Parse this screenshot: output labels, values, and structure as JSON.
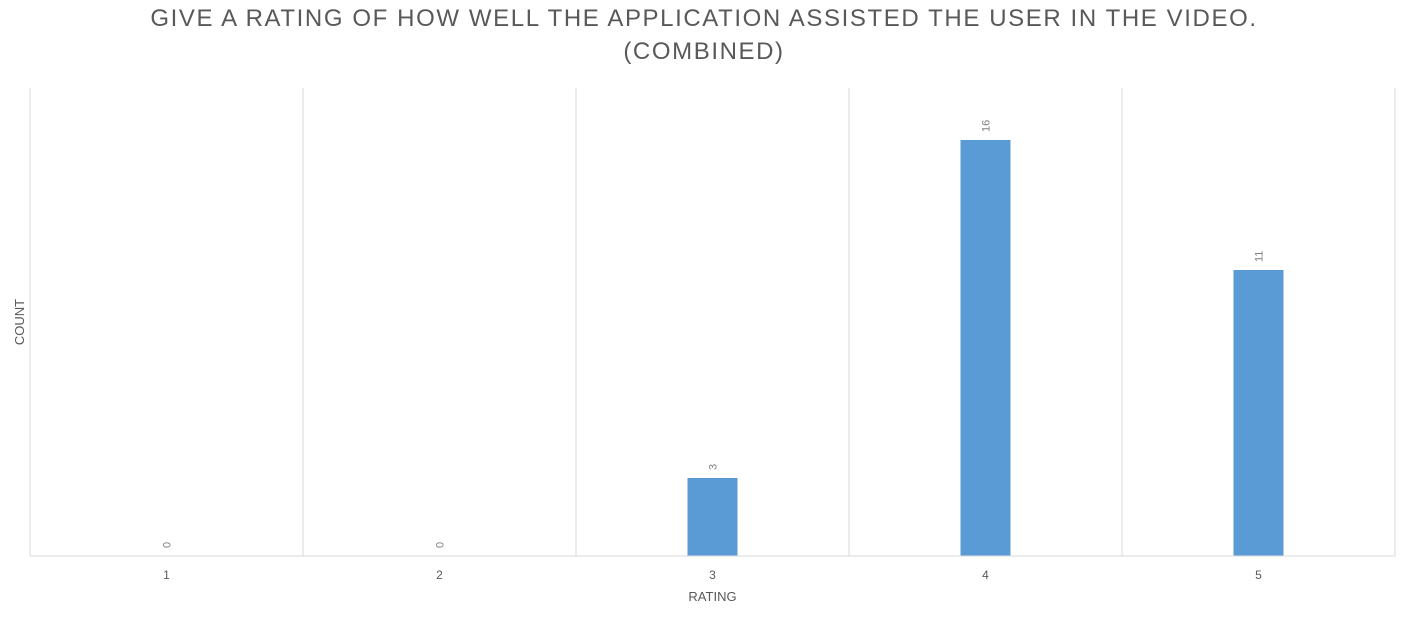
{
  "chart_data": {
    "type": "bar",
    "title_lines": [
      "GIVE A RATING OF HOW WELL THE APPLICATION ASSISTED THE USER IN THE VIDEO.",
      "(COMBINED)"
    ],
    "xlabel": "RATING",
    "ylabel": "COUNT",
    "categories": [
      "1",
      "2",
      "3",
      "4",
      "5"
    ],
    "values": [
      0,
      0,
      3,
      16,
      11
    ],
    "data_labels": [
      "0",
      "0",
      "3",
      "16",
      "11"
    ],
    "ylim": [
      0,
      18
    ],
    "grid": "vertical",
    "legend": "none",
    "bar_color": "#5B9BD5",
    "gridline_color": "#D9D9D9",
    "text_color": "#595959",
    "data_label_color": "#7F7F7F"
  }
}
